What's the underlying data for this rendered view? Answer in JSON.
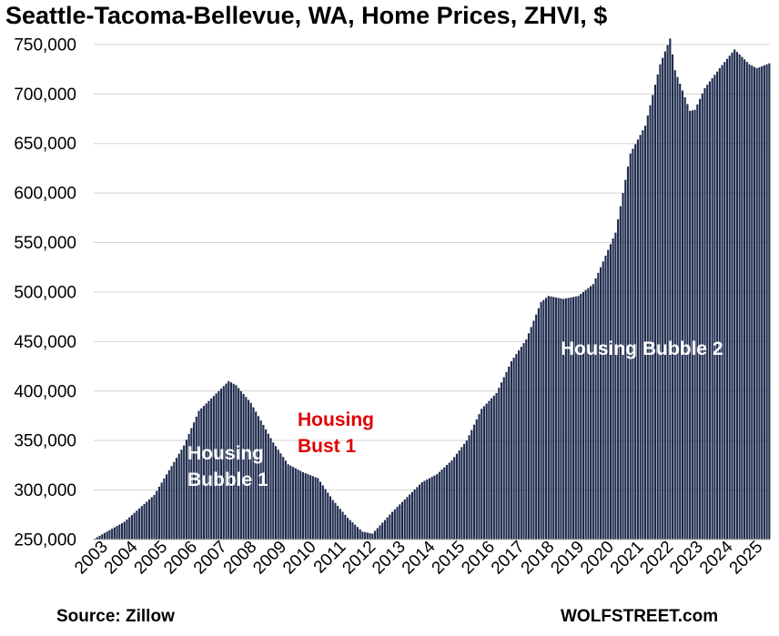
{
  "chart_data": {
    "type": "bar",
    "title": "Seattle-Tacoma-Bellevue, WA, Home Prices, ZHVI, $",
    "xlabel": "",
    "ylabel": "",
    "ylim": [
      250000,
      760000
    ],
    "yticks": [
      250000,
      300000,
      350000,
      400000,
      450000,
      500000,
      550000,
      600000,
      650000,
      700000,
      750000
    ],
    "ytick_labels": [
      "250,000",
      "300,000",
      "350,000",
      "400,000",
      "450,000",
      "500,000",
      "550,000",
      "600,000",
      "650,000",
      "700,000",
      "750,000"
    ],
    "xtick_labels": [
      "2003",
      "2004",
      "2005",
      "2006",
      "2007",
      "2008",
      "2009",
      "2010",
      "2011",
      "2012",
      "2013",
      "2014",
      "2015",
      "2016",
      "2017",
      "2018",
      "2019",
      "2020",
      "2021",
      "2022",
      "2023",
      "2024",
      "2025"
    ],
    "frequency": "monthly",
    "start": "2003-01",
    "end": "2025-09",
    "series_name": "ZHVI",
    "anchors": [
      [
        "2003-01",
        251000
      ],
      [
        "2004-01",
        268000
      ],
      [
        "2005-01",
        295000
      ],
      [
        "2006-01",
        345000
      ],
      [
        "2006-07",
        380000
      ],
      [
        "2007-01",
        395000
      ],
      [
        "2007-07",
        410000
      ],
      [
        "2007-10",
        406000
      ],
      [
        "2008-04",
        388000
      ],
      [
        "2009-01",
        348000
      ],
      [
        "2009-07",
        326000
      ],
      [
        "2010-01",
        318000
      ],
      [
        "2010-07",
        312000
      ],
      [
        "2011-01",
        290000
      ],
      [
        "2011-07",
        272000
      ],
      [
        "2012-01",
        258000
      ],
      [
        "2012-05",
        256000
      ],
      [
        "2013-01",
        278000
      ],
      [
        "2014-01",
        308000
      ],
      [
        "2014-07",
        316000
      ],
      [
        "2015-01",
        330000
      ],
      [
        "2015-07",
        350000
      ],
      [
        "2016-01",
        382000
      ],
      [
        "2016-07",
        398000
      ],
      [
        "2017-01",
        430000
      ],
      [
        "2017-07",
        452000
      ],
      [
        "2018-01",
        490000
      ],
      [
        "2018-04",
        496000
      ],
      [
        "2018-10",
        493000
      ],
      [
        "2019-04",
        496000
      ],
      [
        "2019-10",
        508000
      ],
      [
        "2020-01",
        525000
      ],
      [
        "2020-07",
        560000
      ],
      [
        "2021-01",
        640000
      ],
      [
        "2021-07",
        668000
      ],
      [
        "2022-01",
        730000
      ],
      [
        "2022-05",
        756000
      ],
      [
        "2022-07",
        724000
      ],
      [
        "2023-01",
        683000
      ],
      [
        "2023-03",
        684000
      ],
      [
        "2023-07",
        706000
      ],
      [
        "2024-01",
        726000
      ],
      [
        "2024-07",
        745000
      ],
      [
        "2025-01",
        730000
      ],
      [
        "2025-04",
        726000
      ],
      [
        "2025-09",
        731000
      ]
    ],
    "bar_color": "#1e2b4d",
    "grid": true
  },
  "annotations": {
    "bubble1": "Housing Bubble 1",
    "bust1": "Housing Bust 1",
    "bubble2": "Housing Bubble 2",
    "bust1_color": "#e00000"
  },
  "footer": {
    "source": "Source: Zillow",
    "brand": "WOLFSTREET.com"
  }
}
